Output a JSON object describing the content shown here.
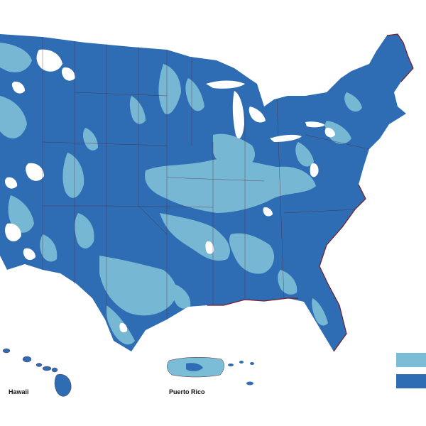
{
  "map": {
    "colors": {
      "primary_coverage": "#2e6db4",
      "secondary_coverage": "#7bbcd6",
      "no_coverage": "#ffffff",
      "state_borders": "#5a1f2a",
      "coastline": "#7a1a22"
    },
    "labels": {
      "hawaii": "Hawaii",
      "puerto_rico": "Puerto Rico"
    },
    "legend": {
      "items": [
        {
          "color": "#7bbcd6"
        },
        {
          "color": "#2e6db4"
        }
      ]
    }
  }
}
